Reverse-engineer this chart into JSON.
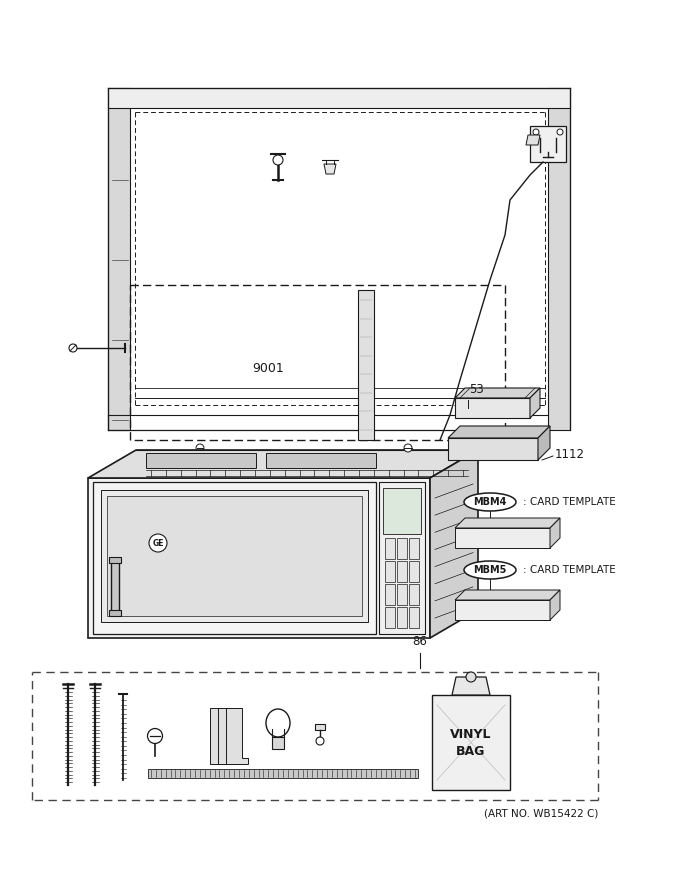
{
  "bg_color": "#ffffff",
  "line_color": "#1a1a1a",
  "text_color": "#1a1a1a",
  "gray_light": "#d8d8d8",
  "gray_med": "#bbbbbb",
  "gray_dark": "#999999",
  "label_9001": "9001",
  "label_53": "53",
  "label_1112": "1112",
  "label_86": "86",
  "label_mbm4": "MBM4",
  "label_mbm5": "MBM5",
  "label_card_template": ": CARD TEMPLATE",
  "label_vinyl_bag": "VINYL\nBAG",
  "label_art_no": "(ART NO. WB15422 C)",
  "figsize": [
    6.8,
    8.8
  ],
  "dpi": 100
}
